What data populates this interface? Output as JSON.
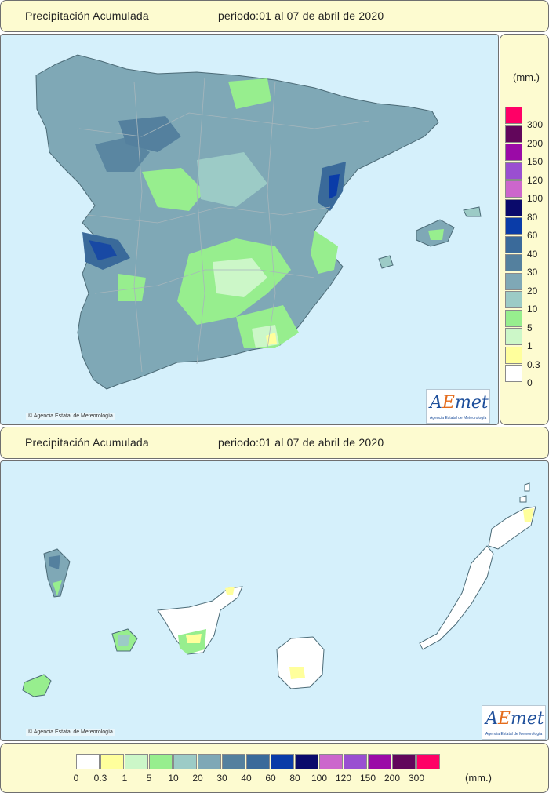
{
  "top_header": {
    "title": "Precipitación Acumulada",
    "period": "periodo:01 al 07 de abril de 2020"
  },
  "bottom_header": {
    "title": "Precipitación Acumulada",
    "period": "periodo:01 al 07 de abril de 2020"
  },
  "copyright": "Agencia Estatal de Meteorología",
  "logo": {
    "text_a": "A",
    "text_e": "E",
    "text_rest": "met",
    "subtitle": "Agencia Estatal de Meteorología"
  },
  "legend": {
    "units": "(mm.)",
    "bins": [
      {
        "label": "0",
        "color": "#ffffff"
      },
      {
        "label": "0.3",
        "color": "#ffff9c"
      },
      {
        "label": "1",
        "color": "#ccf7c8"
      },
      {
        "label": "5",
        "color": "#97ee8e"
      },
      {
        "label": "10",
        "color": "#9ccbc6"
      },
      {
        "label": "20",
        "color": "#7fa8b6"
      },
      {
        "label": "30",
        "color": "#54809e"
      },
      {
        "label": "40",
        "color": "#3a6a9a"
      },
      {
        "label": "60",
        "color": "#0a3ca8"
      },
      {
        "label": "80",
        "color": "#0a0a6b"
      },
      {
        "label": "100",
        "color": "#cc66cc"
      },
      {
        "label": "120",
        "color": "#9a4fd1"
      },
      {
        "label": "150",
        "color": "#9b0aa7"
      },
      {
        "label": "200",
        "color": "#62065b"
      },
      {
        "label": "300",
        "color": "#ff0066"
      }
    ]
  }
}
